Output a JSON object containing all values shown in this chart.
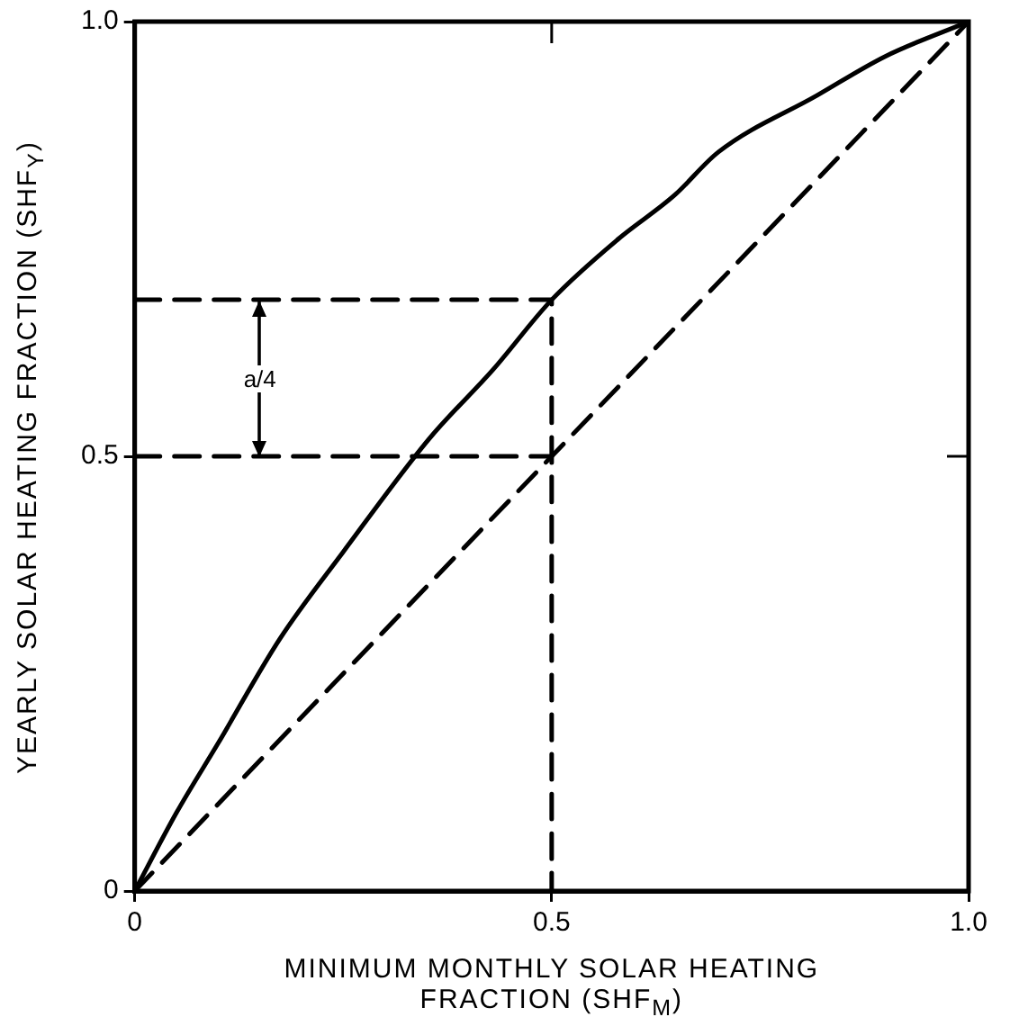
{
  "chart_data": {
    "type": "line",
    "xlabel": "MINIMUM MONTHLY SOLAR HEATING FRACTION (SHF$_{M}$)",
    "ylabel": "YEARLY SOLAR HEATING FRACTION (SHF$_{Y}$)",
    "xlim": [
      0,
      1
    ],
    "ylim": [
      0,
      1
    ],
    "xticks": [
      0,
      0.5,
      {
        "value": 1,
        "label": "1.0"
      }
    ],
    "yticks": [
      0,
      0.5,
      {
        "value": 1,
        "label": "1.0"
      }
    ],
    "grid": false,
    "legend": false,
    "marker": "none",
    "series": [
      {
        "color": "#000000",
        "line_style": "solid",
        "x": [
          0,
          0.05,
          0.1,
          0.174,
          0.25,
          0.353,
          0.43,
          0.5,
          0.58,
          0.647,
          0.7,
          0.818,
          0.9,
          1
        ],
        "values": [
          0,
          0.09,
          0.17,
          0.29,
          0.39,
          0.52,
          0.6,
          0.68,
          0.75,
          0.8,
          0.85,
          0.915,
          0.96,
          1
        ]
      },
      {
        "color": "#000000",
        "line_style": "dashed",
        "x": [
          0,
          1
        ],
        "values": [
          0,
          1
        ]
      },
      {
        "color": "#000000",
        "line_style": "dashed",
        "x": [
          0,
          0.5,
          0.5
        ],
        "values": [
          0.68,
          0.68,
          0
        ]
      },
      {
        "color": "#000000",
        "line_style": "dashed",
        "x": [
          0,
          0.5
        ],
        "values": [
          0.5,
          0.5
        ]
      }
    ],
    "annotations": [
      {
        "text": "a/4",
        "x": 0.15,
        "y": 0.59
      }
    ]
  }
}
